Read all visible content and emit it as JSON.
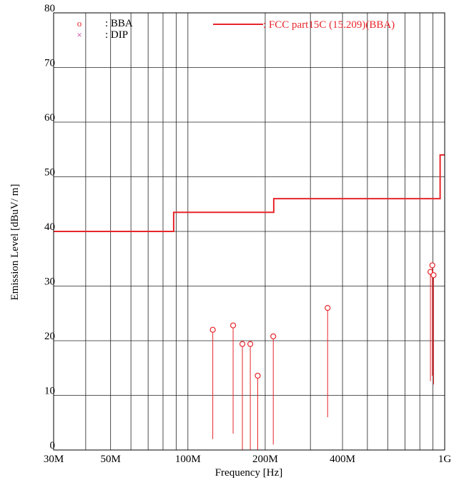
{
  "chart_data": {
    "type": "scatter",
    "title": "",
    "xlabel": "Frequency [Hz]",
    "ylabel": "Emission Level [dBuV/ m]",
    "x_scale": "log",
    "xlim_hz": [
      30000000,
      1000000000
    ],
    "ylim": [
      0,
      80
    ],
    "grid": true,
    "y_ticks": [
      0,
      10,
      20,
      30,
      40,
      50,
      60,
      70,
      80
    ],
    "x_tick_labels": [
      {
        "hz": 30000000,
        "label": "30M"
      },
      {
        "hz": 50000000,
        "label": "50M"
      },
      {
        "hz": 100000000,
        "label": "100M"
      },
      {
        "hz": 200000000,
        "label": "200M"
      },
      {
        "hz": 400000000,
        "label": "400M"
      },
      {
        "hz": 1000000000,
        "label": "1G"
      }
    ],
    "x_minor_grid_hz": [
      40000000,
      60000000,
      70000000,
      80000000,
      90000000,
      300000000,
      500000000,
      600000000,
      700000000,
      800000000,
      900000000
    ],
    "legend": {
      "placement": "top",
      "left": [
        {
          "symbol": "o",
          "label": ": BBA",
          "color": "#e8262b"
        },
        {
          "symbol": "×",
          "label": ": DIP",
          "color": "#c0329b"
        }
      ],
      "limit_line_label": ": FCC part15C (15.209)(BBA)"
    },
    "limit_line": {
      "name": "FCC part15C (15.209)(BBA)",
      "color": "#e8262b",
      "points": [
        {
          "hz": 30000000,
          "dbuv": 40.0
        },
        {
          "hz": 88000000,
          "dbuv": 40.0
        },
        {
          "hz": 88000000,
          "dbuv": 43.5
        },
        {
          "hz": 216000000,
          "dbuv": 43.5
        },
        {
          "hz": 216000000,
          "dbuv": 46.0
        },
        {
          "hz": 960000000,
          "dbuv": 46.0
        },
        {
          "hz": 960000000,
          "dbuv": 54.0
        },
        {
          "hz": 1000000000,
          "dbuv": 54.0
        }
      ]
    },
    "series": [
      {
        "name": "BBA",
        "color": "#e8262b",
        "points": [
          {
            "hz": 125000000,
            "peak": 22.0,
            "floor": 2.0
          },
          {
            "hz": 150000000,
            "peak": 22.8,
            "floor": 3.0
          },
          {
            "hz": 163000000,
            "peak": 19.4,
            "floor": 0.0
          },
          {
            "hz": 175000000,
            "peak": 19.4,
            "floor": 0.0
          },
          {
            "hz": 187000000,
            "peak": 13.6,
            "floor": 0.0
          },
          {
            "hz": 215000000,
            "peak": 20.8,
            "floor": 1.0
          },
          {
            "hz": 350000000,
            "peak": 26.0,
            "floor": 6.0
          },
          {
            "hz": 880000000,
            "peak": 32.6,
            "floor": 12.6
          },
          {
            "hz": 895000000,
            "peak": 33.8,
            "floor": 13.6
          },
          {
            "hz": 905000000,
            "peak": 32.0,
            "floor": 12.0
          }
        ]
      }
    ]
  }
}
